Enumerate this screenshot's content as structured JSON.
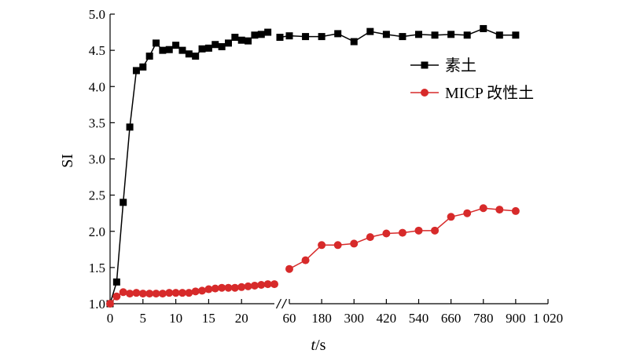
{
  "chart_data": {
    "type": "line",
    "ylabel": "SI",
    "xlabel": {
      "italic": "t",
      "rest": "/s"
    },
    "ylim": [
      1.0,
      5.0
    ],
    "yticks": [
      "1.0",
      "1.5",
      "2.0",
      "2.5",
      "3.0",
      "3.5",
      "4.0",
      "4.5",
      "5.0"
    ],
    "x_segments": [
      {
        "range": [
          0,
          25
        ],
        "ticks": [
          0,
          5,
          10,
          15,
          20
        ],
        "tick_labels": [
          "0",
          "5",
          "10",
          "15",
          "20"
        ]
      },
      {
        "range": [
          60,
          1020
        ],
        "ticks": [
          60,
          180,
          300,
          420,
          540,
          660,
          780,
          900,
          1020
        ],
        "tick_labels": [
          "60",
          "180",
          "300",
          "420",
          "540",
          "660",
          "780",
          "900",
          "1 020"
        ]
      }
    ],
    "legend": {
      "position": "right"
    },
    "grid": false,
    "series": [
      {
        "name": "素土",
        "color": "#000000",
        "marker": "square",
        "segments": [
          {
            "x": [
              0,
              1,
              2,
              3,
              4,
              5,
              6,
              7,
              8,
              9,
              10,
              11,
              12,
              13,
              14,
              15,
              16,
              17,
              18,
              19,
              20,
              21,
              22,
              23,
              24
            ],
            "y": [
              1.0,
              1.3,
              2.4,
              3.44,
              4.22,
              4.27,
              4.42,
              4.6,
              4.5,
              4.51,
              4.57,
              4.5,
              4.45,
              4.42,
              4.52,
              4.53,
              4.58,
              4.55,
              4.6,
              4.68,
              4.64,
              4.63,
              4.71,
              4.72,
              4.75
            ]
          },
          {
            "x": [
              25,
              60,
              120,
              180,
              240,
              300,
              360,
              420,
              480,
              540,
              600,
              660,
              720,
              780,
              840,
              900
            ],
            "y": [
              4.68,
              4.7,
              4.69,
              4.69,
              4.73,
              4.62,
              4.76,
              4.72,
              4.69,
              4.72,
              4.71,
              4.72,
              4.71,
              4.8,
              4.71,
              4.71
            ]
          }
        ]
      },
      {
        "name": "MICP 改性土",
        "color": "#d72a2a",
        "marker": "circle",
        "segments": [
          {
            "x": [
              0,
              1,
              2,
              3,
              4,
              5,
              6,
              7,
              8,
              9,
              10,
              11,
              12,
              13,
              14,
              15,
              16,
              17,
              18,
              19,
              20,
              21,
              22,
              23,
              24,
              25
            ],
            "y": [
              1.0,
              1.1,
              1.16,
              1.14,
              1.15,
              1.14,
              1.14,
              1.14,
              1.14,
              1.15,
              1.15,
              1.15,
              1.15,
              1.17,
              1.18,
              1.2,
              1.21,
              1.22,
              1.22,
              1.22,
              1.23,
              1.24,
              1.25,
              1.26,
              1.27,
              1.27
            ]
          },
          {
            "x": [
              60,
              120,
              180,
              240,
              300,
              360,
              420,
              480,
              540,
              600,
              660,
              720,
              780,
              840,
              900
            ],
            "y": [
              1.48,
              1.6,
              1.81,
              1.81,
              1.83,
              1.92,
              1.97,
              1.98,
              2.01,
              2.01,
              2.2,
              2.25,
              2.32,
              2.3,
              2.28
            ]
          }
        ]
      }
    ]
  }
}
